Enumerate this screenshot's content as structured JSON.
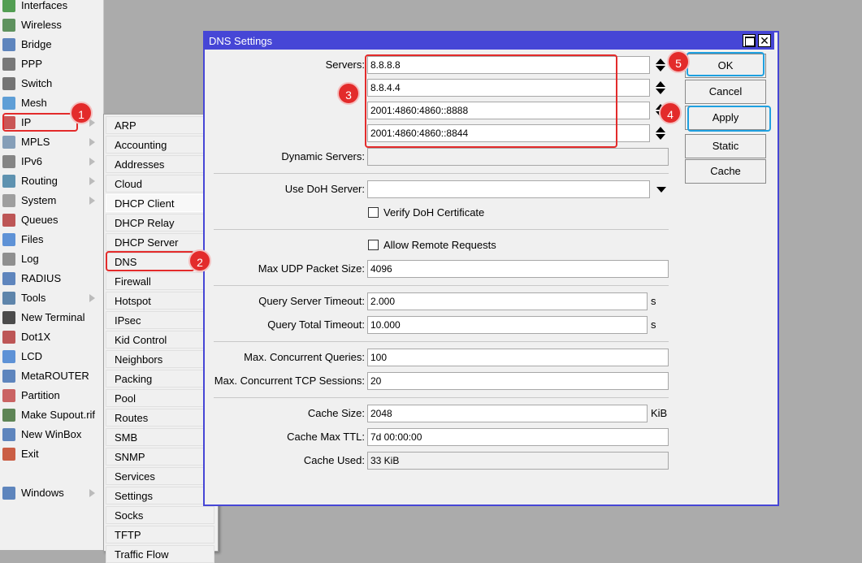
{
  "sidebar": {
    "items": [
      "Interfaces",
      "Wireless",
      "Bridge",
      "PPP",
      "Switch",
      "Mesh",
      "IP",
      "MPLS",
      "IPv6",
      "Routing",
      "System",
      "Queues",
      "Files",
      "Log",
      "RADIUS",
      "Tools",
      "New Terminal",
      "Dot1X",
      "LCD",
      "MetaROUTER",
      "Partition",
      "Make Supout.rif",
      "New WinBox",
      "Exit",
      "Windows"
    ]
  },
  "submenu": {
    "items": [
      "ARP",
      "Accounting",
      "Addresses",
      "Cloud",
      "DHCP Client",
      "DHCP Relay",
      "DHCP Server",
      "DNS",
      "Firewall",
      "Hotspot",
      "IPsec",
      "Kid Control",
      "Neighbors",
      "Packing",
      "Pool",
      "Routes",
      "SMB",
      "SNMP",
      "Services",
      "Settings",
      "Socks",
      "TFTP",
      "Traffic Flow"
    ]
  },
  "dialog": {
    "title": "DNS Settings",
    "servers": {
      "label": "Servers:",
      "values": [
        "8.8.8.8",
        "8.8.4.4",
        "2001:4860:4860::8888",
        "2001:4860:4860::8844"
      ]
    },
    "fields": [
      {
        "label": "Dynamic Servers:"
      },
      {
        "label": "Use DoH Server:"
      },
      {
        "label": "Max UDP Packet Size:",
        "value": "4096"
      },
      {
        "label": "Query Server Timeout:",
        "value": "2.000",
        "unit": "s"
      },
      {
        "label": "Query Total Timeout:",
        "value": "10.000",
        "unit": "s"
      },
      {
        "label": "Max. Concurrent Queries:",
        "value": "100"
      },
      {
        "label": "Max. Concurrent TCP Sessions:",
        "value": "20"
      },
      {
        "label": "Cache Size:",
        "value": "2048",
        "unit": "KiB"
      },
      {
        "label": "Cache Max TTL:",
        "value": "7d 00:00:00"
      },
      {
        "label": "Cache Used:",
        "value": "33 KiB"
      }
    ],
    "checkboxes": [
      "Verify DoH Certificate",
      "Allow Remote Requests"
    ],
    "buttons": [
      "OK",
      "Cancel",
      "Apply",
      "Static",
      "Cache"
    ]
  },
  "annotations": [
    "1",
    "2",
    "3",
    "4",
    "5"
  ]
}
